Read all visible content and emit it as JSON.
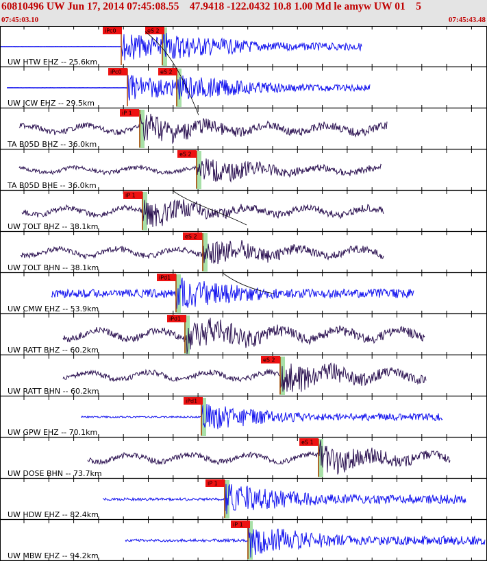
{
  "header": {
    "title": "60810496 UW Jun 17, 2014 07:45:08.55    47.9418 -122.0432 10.8 1.00 Md le amyw UW 01    5",
    "start_time": "07:45:03.10",
    "end_time": "07:45:43.48"
  },
  "colors": {
    "blue_trace": "#1010ee",
    "dark_trace": "#2a1050",
    "pick_box": "#ee1111",
    "pick_window": "#a8e0a8",
    "header_text": "#c00000"
  },
  "traces": [
    {
      "label": "UW HTW EHZ -- 25.6km",
      "color": "blue",
      "picks": [
        {
          "label": "iPc0",
          "box_x": 150,
          "line_x": 177,
          "green": false
        },
        {
          "label": "eS 2",
          "box_x": 212,
          "line_x": 237,
          "green": true
        }
      ]
    },
    {
      "label": "UW JCW EHZ -- 29.5km",
      "color": "blue",
      "picks": [
        {
          "label": "iPc0",
          "box_x": 158,
          "line_x": 186,
          "green": false
        },
        {
          "label": "eS 2",
          "box_x": 231,
          "line_x": 258,
          "green": true
        }
      ]
    },
    {
      "label": "TA B05D BHZ -- 36.0km",
      "color": "dark",
      "picks": [
        {
          "label": "iP 1",
          "box_x": 175,
          "line_x": 204,
          "green": true
        }
      ]
    },
    {
      "label": "TA B05D BHE -- 36.0km",
      "color": "dark",
      "picks": [
        {
          "label": "eS 2",
          "box_x": 259,
          "line_x": 287,
          "green": true
        }
      ]
    },
    {
      "label": "UW TOLT BHZ -- 38.1km",
      "color": "dark",
      "picks": [
        {
          "label": "iP 1",
          "box_x": 180,
          "line_x": 208,
          "green": true
        }
      ]
    },
    {
      "label": "UW TOLT BHN -- 38.1km",
      "color": "dark",
      "picks": [
        {
          "label": "eS 2",
          "box_x": 267,
          "line_x": 296,
          "green": true
        }
      ]
    },
    {
      "label": "UW CMW EHZ -- 53.9km",
      "color": "blue",
      "picks": [
        {
          "label": "iPd1",
          "box_x": 229,
          "line_x": 257,
          "green": true
        }
      ]
    },
    {
      "label": "UW RATT BHZ -- 60.2km",
      "color": "dark",
      "picks": [
        {
          "label": "iPd1",
          "box_x": 244,
          "line_x": 270,
          "green": true
        }
      ]
    },
    {
      "label": "UW RATT BHN -- 60.2km",
      "color": "dark",
      "picks": [
        {
          "label": "eS 2",
          "box_x": 381,
          "line_x": 409,
          "green": true
        }
      ]
    },
    {
      "label": "UW GPW EHZ -- 70.1km",
      "color": "blue",
      "picks": [
        {
          "label": "iPd1",
          "box_x": 268,
          "line_x": 294,
          "green": true
        }
      ]
    },
    {
      "label": "UW DOSE BHN -- 73.7km",
      "color": "dark",
      "picks": [
        {
          "label": "eS 1",
          "box_x": 437,
          "line_x": 465,
          "green": true
        }
      ]
    },
    {
      "label": "UW HDW EHZ -- 82.4km",
      "color": "blue",
      "picks": [
        {
          "label": "iP 1",
          "box_x": 300,
          "line_x": 328,
          "green": true
        }
      ]
    },
    {
      "label": "UW MBW EHZ -- 94.2km",
      "color": "blue",
      "picks": [
        {
          "label": "iP 1",
          "box_x": 337,
          "line_x": 362,
          "green": true
        }
      ]
    }
  ]
}
